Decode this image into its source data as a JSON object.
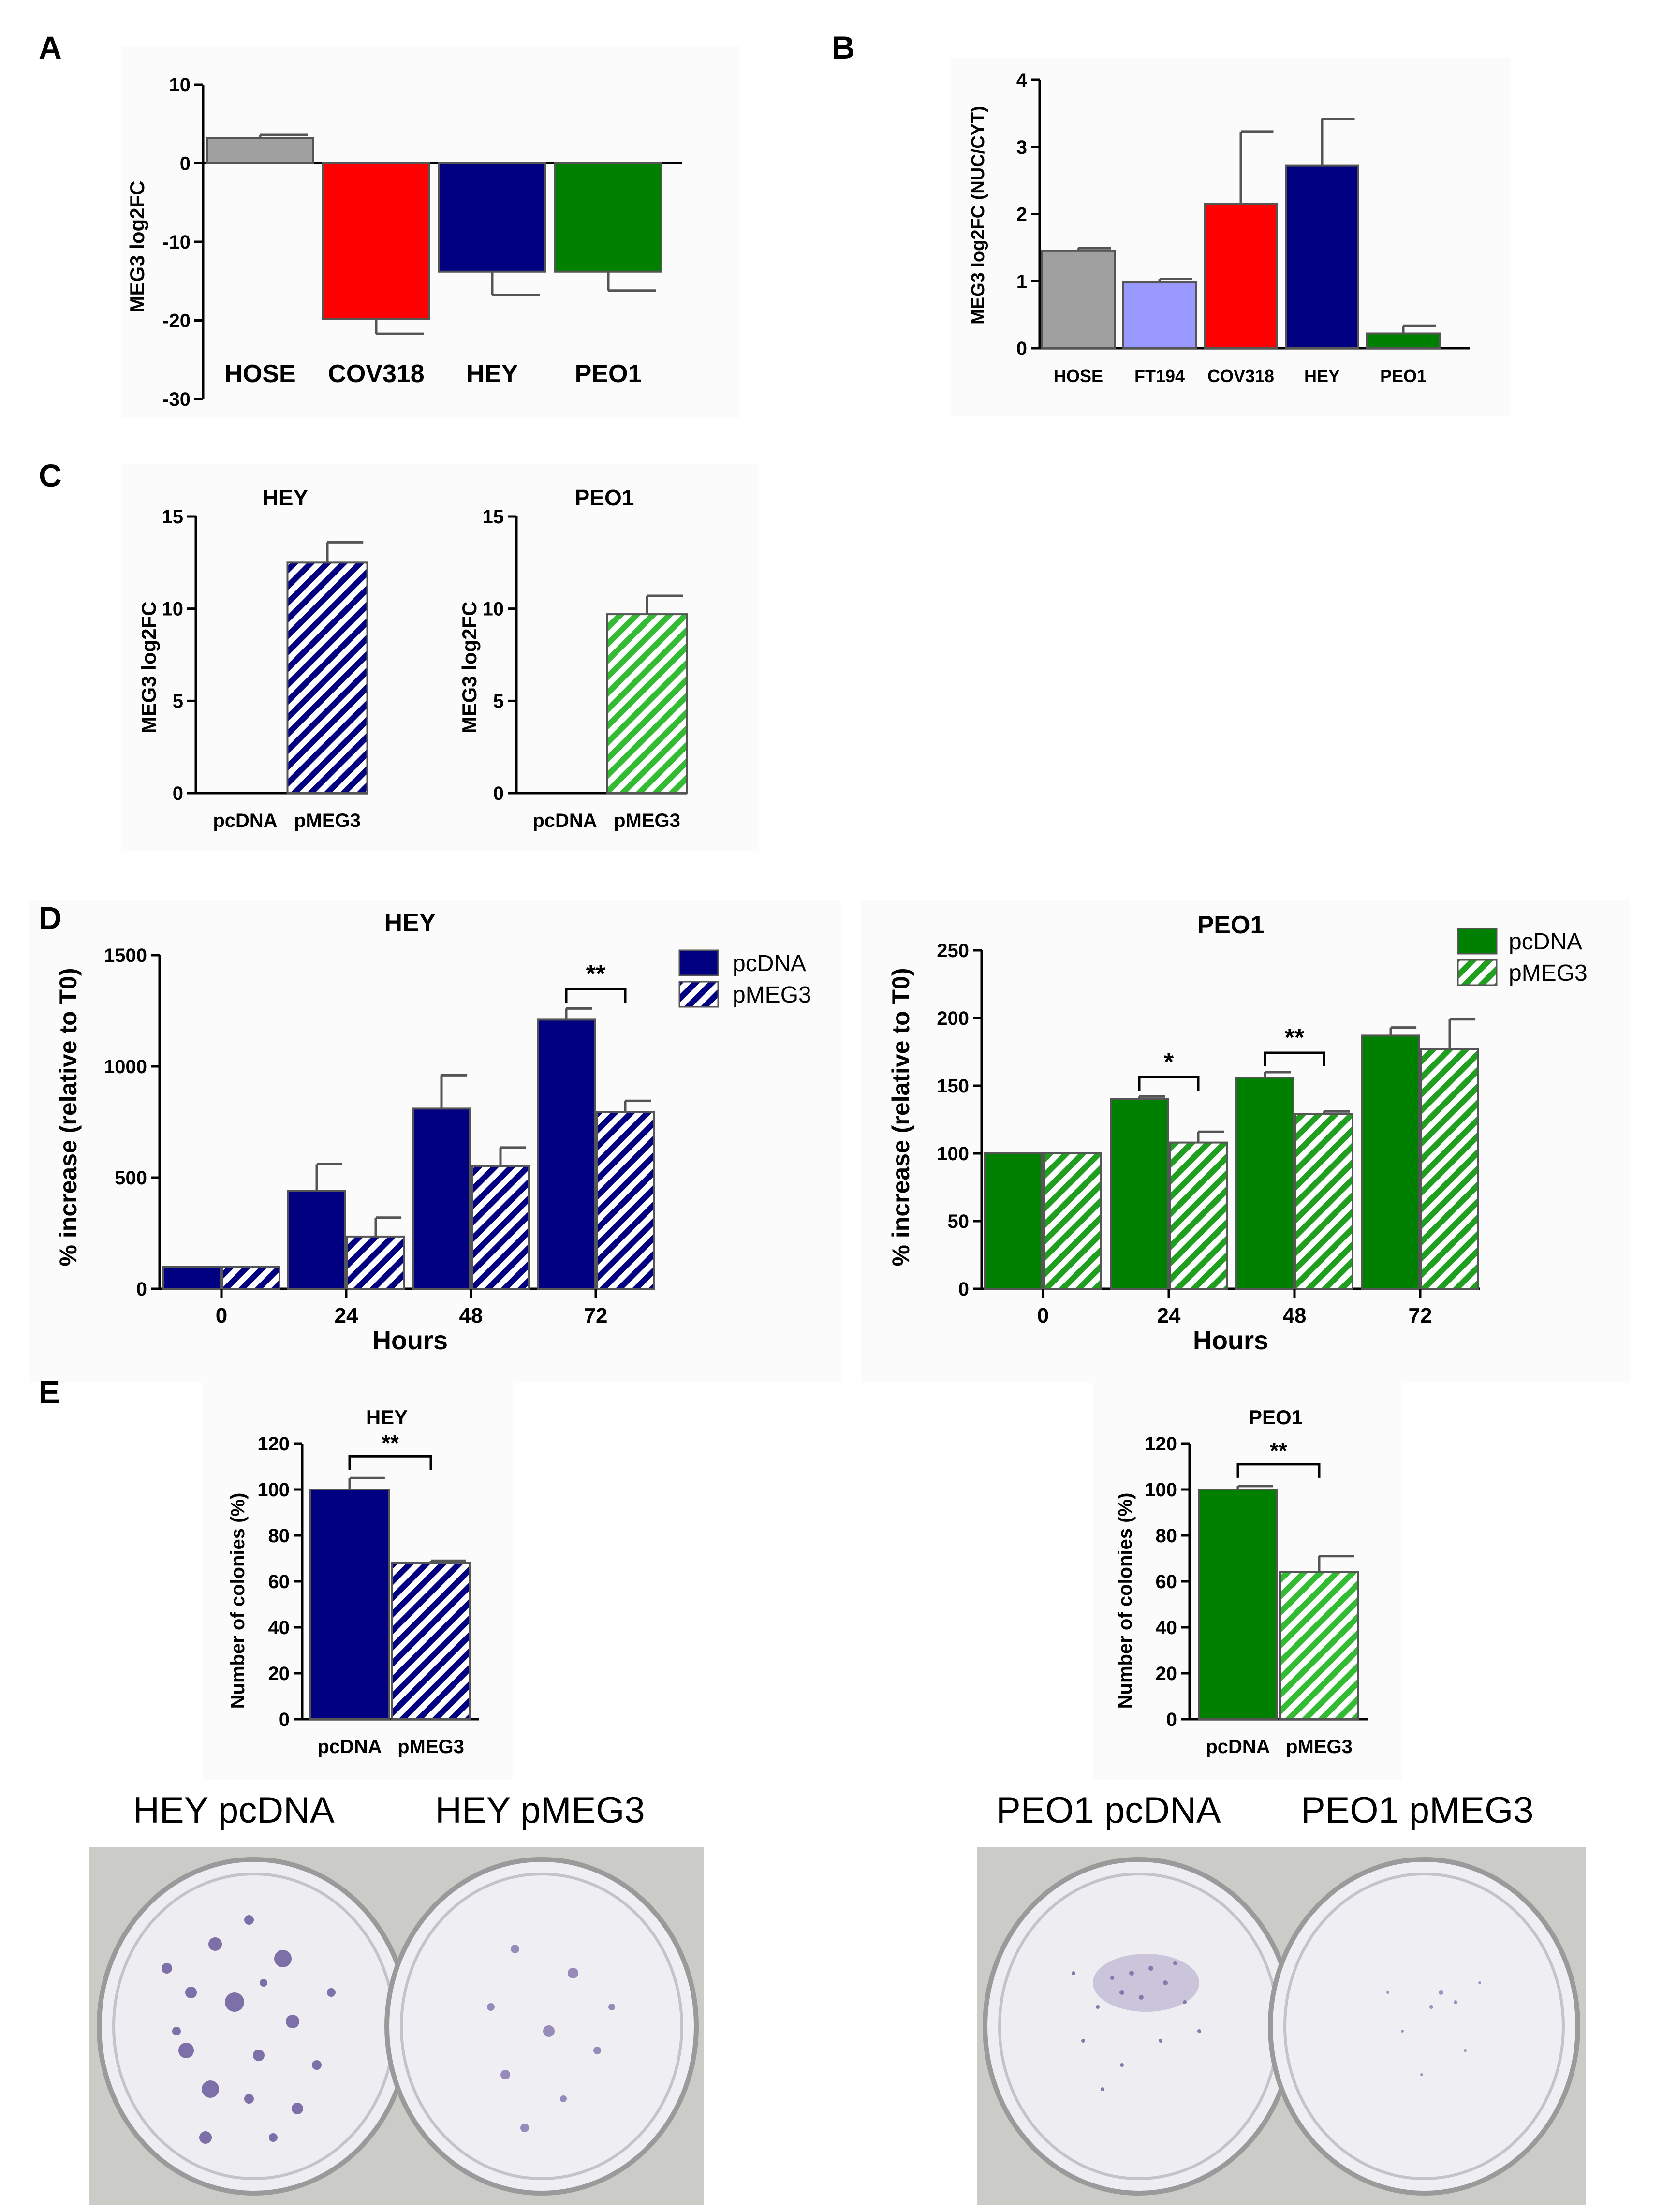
{
  "chart_data": [
    {
      "panel": "A",
      "type": "bar",
      "categories": [
        "HOSE",
        "COV318",
        "HEY",
        "PEO1"
      ],
      "values": [
        3.2,
        -19.8,
        -13.8,
        -13.8
      ],
      "errors": [
        0.4,
        1.9,
        3.0,
        2.4
      ],
      "colors": [
        "#a0a0a0",
        "#ff0000",
        "#000080",
        "#008000"
      ],
      "ylabel": "MEG3 log2FC",
      "ylim": [
        -30,
        10
      ],
      "yticks": [
        "10",
        "0",
        "-10",
        "-20",
        "-30"
      ]
    },
    {
      "panel": "B",
      "type": "bar",
      "categories": [
        "HOSE",
        "FT194",
        "COV318",
        "HEY",
        "PEO1"
      ],
      "values": [
        1.45,
        0.98,
        2.15,
        2.72,
        0.22
      ],
      "errors": [
        0.04,
        0.05,
        1.08,
        0.7,
        0.11
      ],
      "colors": [
        "#a0a0a0",
        "#9999ff",
        "#ff0000",
        "#000080",
        "#008000"
      ],
      "ylabel": "MEG3 log2FC (NUC/CYT)",
      "ylim": [
        0,
        4
      ],
      "yticks": [
        "4",
        "3",
        "2",
        "1",
        "0"
      ]
    },
    {
      "panel": "C",
      "type": "bar",
      "title": "HEY",
      "categories": [
        "pcDNA",
        "pMEG3"
      ],
      "values": [
        0,
        12.5
      ],
      "errors": [
        0,
        1.1
      ],
      "colors": [
        "#000080",
        "#000080"
      ],
      "ylabel": "MEG3 log2FC",
      "ylim": [
        0,
        15
      ],
      "yticks": [
        "15",
        "10",
        "5",
        "0"
      ]
    },
    {
      "panel": "C",
      "type": "bar",
      "title": "PEO1",
      "categories": [
        "pcDNA",
        "pMEG3"
      ],
      "values": [
        0,
        9.7
      ],
      "errors": [
        0,
        1.0
      ],
      "colors": [
        "#008000",
        "#22aa22"
      ],
      "ylabel": "MEG3 log2FC",
      "ylim": [
        0,
        15
      ],
      "yticks": [
        "15",
        "10",
        "5",
        "0"
      ]
    },
    {
      "panel": "D",
      "type": "bar",
      "title": "HEY",
      "categories": [
        "0",
        "24",
        "48",
        "72"
      ],
      "series": [
        {
          "name": "pcDNA",
          "values": [
            100,
            440,
            810,
            1210
          ],
          "errors": [
            0,
            120,
            150,
            50
          ]
        },
        {
          "name": "pMEG3",
          "values": [
            100,
            235,
            550,
            795
          ],
          "errors": [
            0,
            85,
            85,
            50
          ]
        }
      ],
      "xlabel": "Hours",
      "ylabel": "% increase (relative to T0)",
      "ylim": [
        0,
        1500
      ],
      "yticks": [
        "1500",
        "1000",
        "500",
        "0"
      ],
      "significance": [
        {
          "at": "72",
          "label": "**"
        }
      ]
    },
    {
      "panel": "D",
      "type": "bar",
      "title": "PEO1",
      "categories": [
        "0",
        "24",
        "48",
        "72"
      ],
      "series": [
        {
          "name": "pcDNA",
          "values": [
            100,
            140,
            156,
            187
          ],
          "errors": [
            0,
            2,
            4,
            6
          ]
        },
        {
          "name": "pMEG3",
          "values": [
            100,
            108,
            129,
            177
          ],
          "errors": [
            0,
            8,
            2,
            22
          ]
        }
      ],
      "xlabel": "Hours",
      "ylabel": "% increase (relative to T0)",
      "ylim": [
        0,
        250
      ],
      "yticks": [
        "250",
        "200",
        "150",
        "100",
        "50",
        "0"
      ],
      "significance": [
        {
          "at": "24",
          "label": "*"
        },
        {
          "at": "48",
          "label": "**"
        }
      ]
    },
    {
      "panel": "E",
      "type": "bar",
      "title": "HEY",
      "categories": [
        "pcDNA",
        "pMEG3"
      ],
      "values": [
        100,
        68
      ],
      "errors": [
        5,
        1
      ],
      "ylabel": "Number of colonies (%)",
      "ylim": [
        0,
        120
      ],
      "yticks": [
        "120",
        "100",
        "80",
        "60",
        "40",
        "20",
        "0"
      ],
      "significance": "**"
    },
    {
      "panel": "E",
      "type": "bar",
      "title": "PEO1",
      "categories": [
        "pcDNA",
        "pMEG3"
      ],
      "values": [
        100,
        64
      ],
      "errors": [
        1.5,
        7
      ],
      "ylabel": "Number of colonies (%)",
      "ylim": [
        0,
        120
      ],
      "yticks": [
        "120",
        "100",
        "80",
        "60",
        "40",
        "20",
        "0"
      ],
      "significance": "**"
    }
  ],
  "panel_letters": {
    "a": "A",
    "b": "B",
    "c": "C",
    "d": "D",
    "e": "E"
  },
  "photos": {
    "hey_pcdna": "HEY pcDNA",
    "hey_pmeg3": "HEY pMEG3",
    "peo1_pcdna": "PEO1 pcDNA",
    "peo1_pmeg3": "PEO1 pMEG3"
  }
}
